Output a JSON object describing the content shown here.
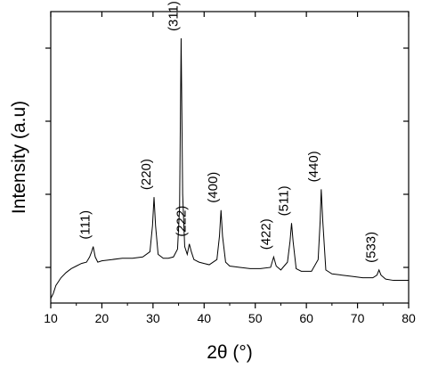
{
  "chart_data": {
    "type": "line",
    "xlabel": "2θ (°)",
    "ylabel": "Intensity (a.u)",
    "xlim": [
      10,
      80
    ],
    "ylim": [
      0,
      100
    ],
    "x_ticks": [
      10,
      20,
      30,
      40,
      50,
      60,
      70,
      80
    ],
    "y_ticks_labeled": false,
    "grid": false,
    "legend": "none",
    "peaks": [
      {
        "label": "(111)",
        "x": 18.3,
        "y": 20
      },
      {
        "label": "(220)",
        "x": 30.2,
        "y": 39
      },
      {
        "label": "(311)",
        "x": 35.5,
        "y": 100
      },
      {
        "label": "(222)",
        "x": 37.1,
        "y": 21
      },
      {
        "label": "(400)",
        "x": 43.3,
        "y": 34
      },
      {
        "label": "(422)",
        "x": 53.6,
        "y": 16
      },
      {
        "label": "(511)",
        "x": 57.1,
        "y": 29
      },
      {
        "label": "(440)",
        "x": 62.9,
        "y": 42
      },
      {
        "label": "(533)",
        "x": 74.2,
        "y": 11
      }
    ],
    "series": [
      {
        "x": [
          10,
          10.5,
          11,
          12,
          13,
          14,
          15,
          16,
          17,
          17.6,
          18.0,
          18.3,
          18.7,
          19.2,
          20,
          22,
          24,
          26,
          28,
          29.4,
          29.9,
          30.2,
          30.5,
          31.0,
          32,
          33,
          34,
          34.8,
          35.2,
          35.5,
          35.8,
          36.2,
          36.7,
          37.1,
          37.5,
          38,
          39,
          40,
          41,
          42.5,
          43.0,
          43.3,
          43.6,
          44.2,
          45,
          47,
          49,
          51,
          53.0,
          53.6,
          54.1,
          55,
          56.3,
          56.8,
          57.1,
          57.4,
          58,
          59,
          60,
          61,
          62.3,
          62.7,
          62.9,
          63.2,
          63.8,
          65,
          67,
          69,
          71,
          73,
          73.8,
          74.2,
          74.6,
          75.5,
          77,
          79,
          80
        ],
        "y": [
          0,
          2,
          5,
          8,
          10,
          11.5,
          12.5,
          13.5,
          14,
          16,
          18,
          20,
          16,
          14,
          14.5,
          15,
          15.5,
          15.5,
          16,
          18,
          28,
          39,
          28,
          17,
          15.5,
          15.5,
          16,
          19,
          35,
          100,
          40,
          20,
          17,
          21,
          18,
          15,
          14,
          13.5,
          13,
          15,
          24,
          34,
          24,
          14,
          12.5,
          12,
          11.5,
          11.5,
          12,
          16,
          12.5,
          11,
          14,
          22,
          29,
          22,
          11.5,
          10.5,
          10.5,
          10.5,
          15,
          30,
          42,
          30,
          11,
          9.5,
          9,
          8.5,
          8,
          8,
          9,
          11,
          9,
          7.5,
          7,
          7,
          7
        ]
      }
    ]
  }
}
